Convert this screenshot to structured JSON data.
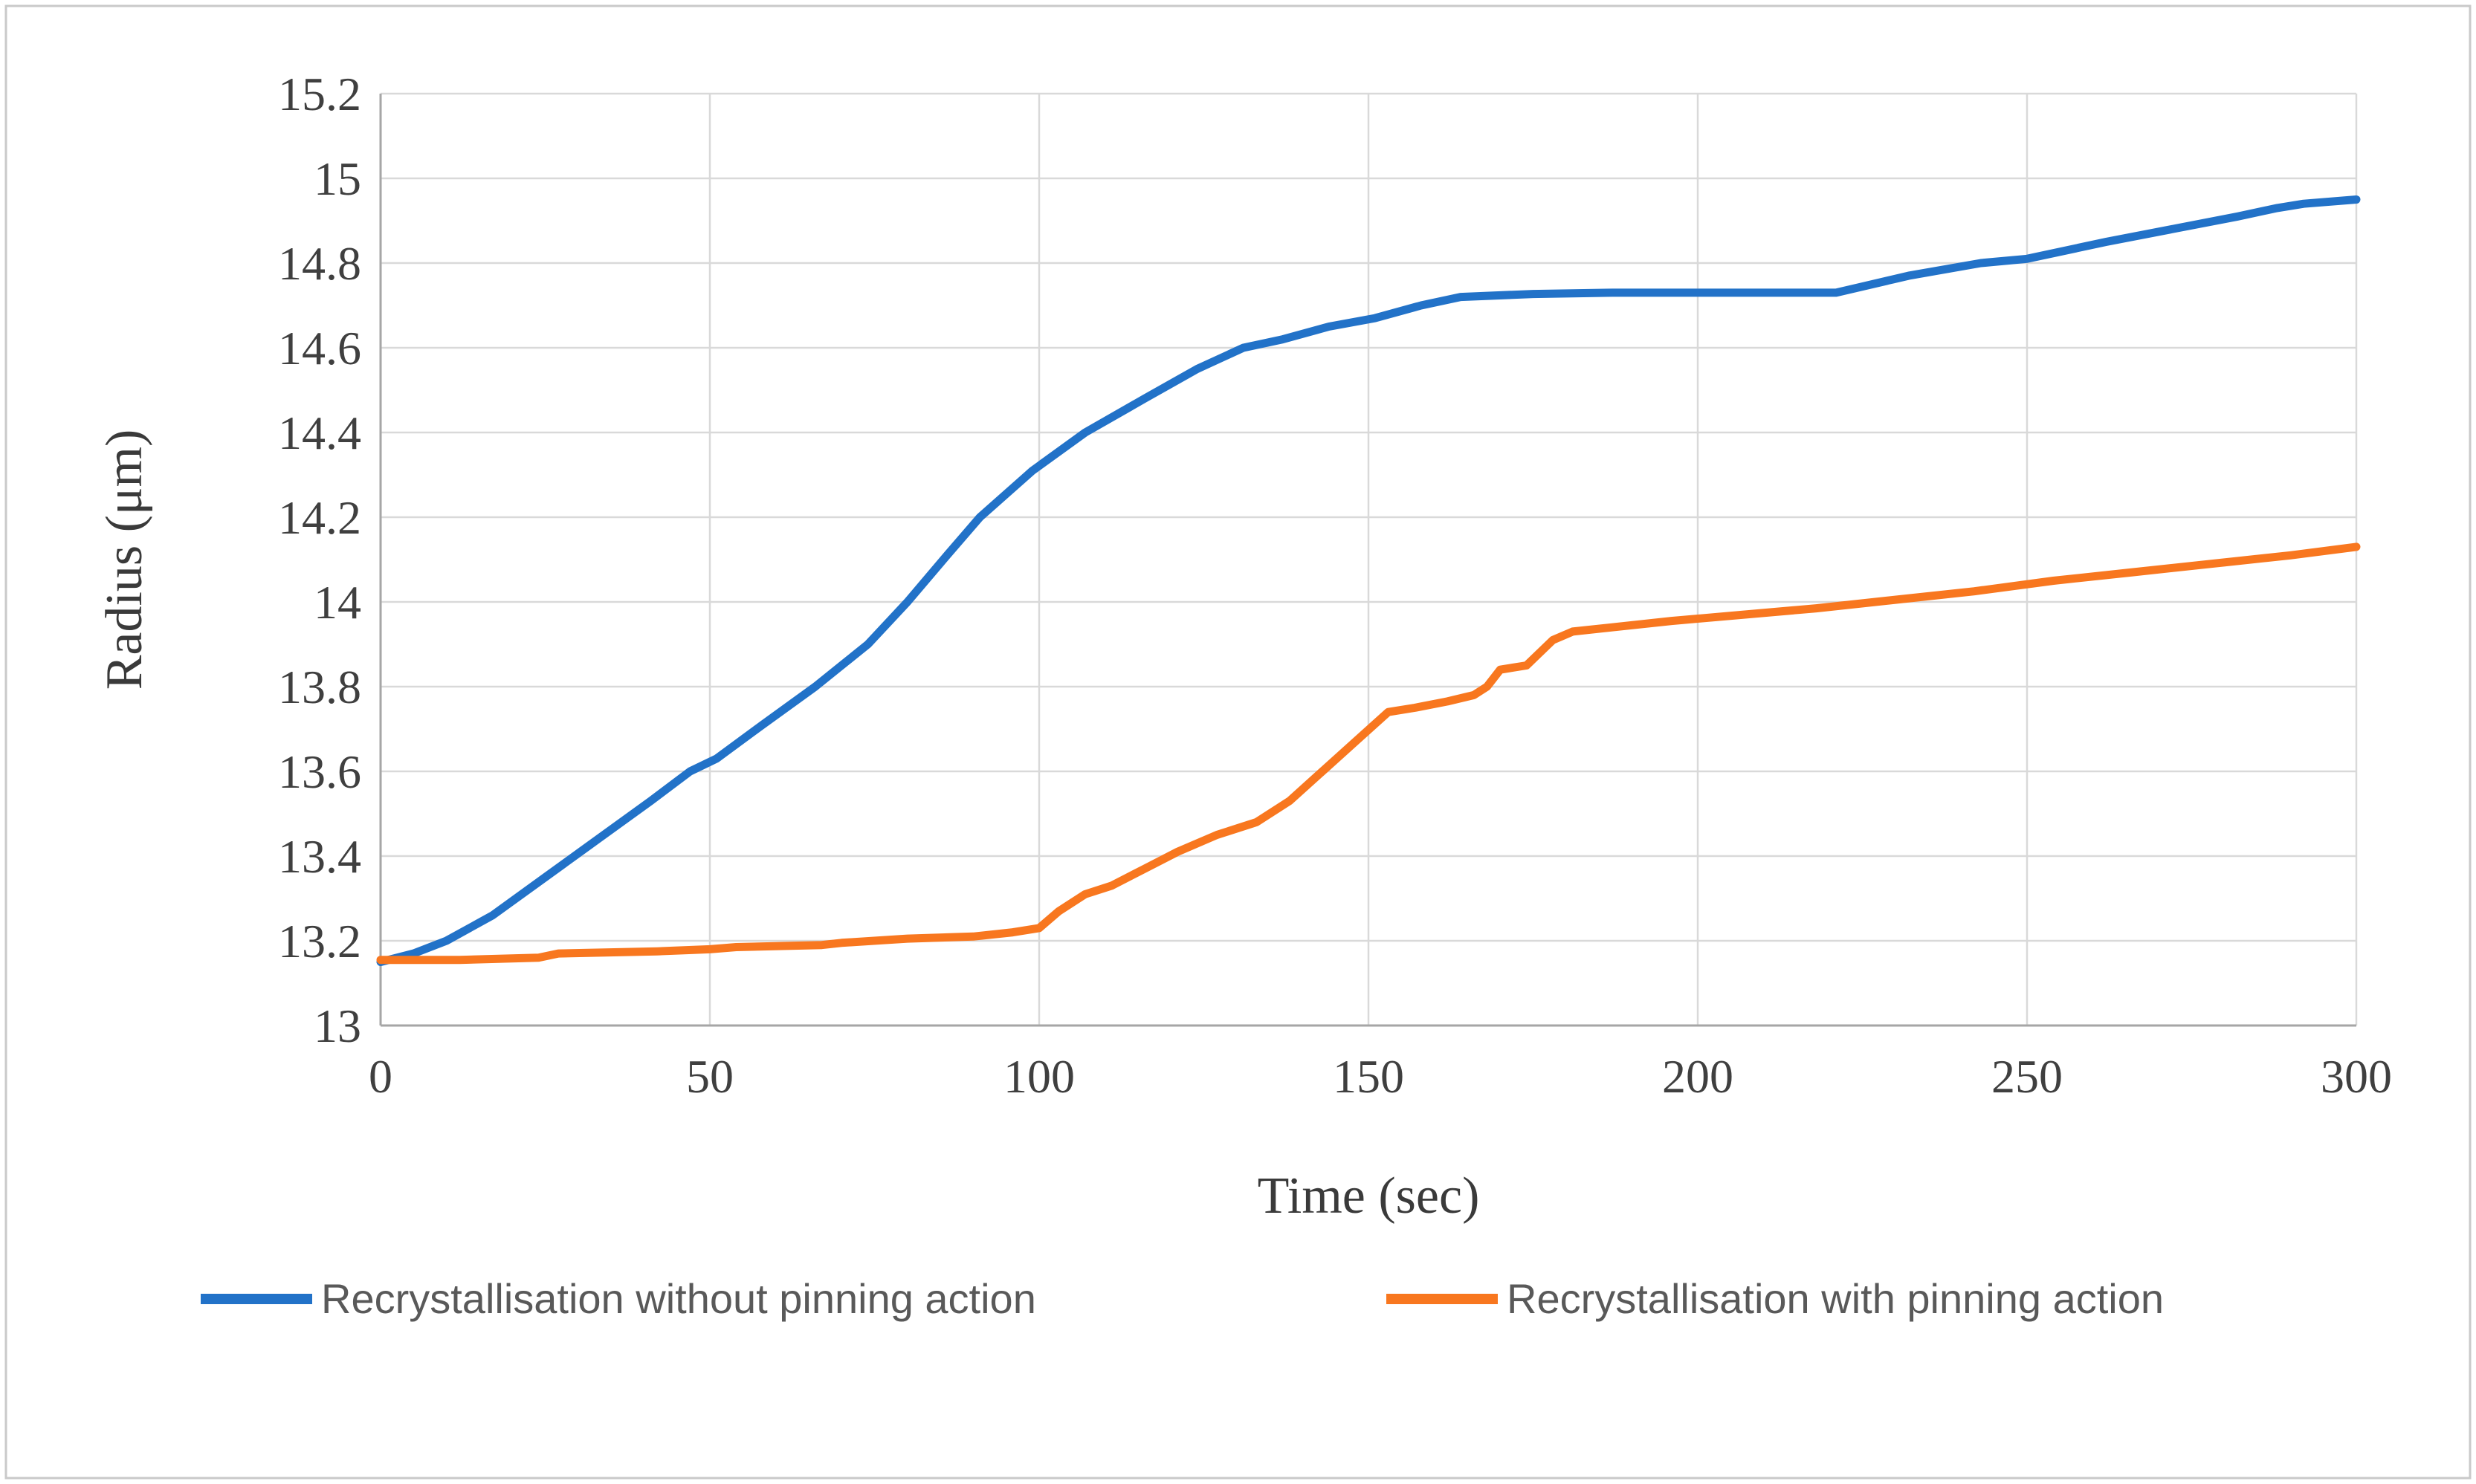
{
  "chart_data": {
    "type": "line",
    "title": "",
    "xlabel": "Time (sec)",
    "ylabel": "Radius (μm)",
    "xlim": [
      0,
      300
    ],
    "ylim": [
      13,
      15.2
    ],
    "x_ticks": [
      "0",
      "50",
      "100",
      "150",
      "200",
      "250",
      "300"
    ],
    "x_tick_values": [
      0,
      50,
      100,
      150,
      200,
      250,
      300
    ],
    "y_ticks": [
      "13",
      "13.2",
      "13.4",
      "13.6",
      "13.8",
      "14",
      "14.2",
      "14.4",
      "14.6",
      "14.8",
      "15",
      "15.2"
    ],
    "y_tick_values": [
      13,
      13.2,
      13.4,
      13.6,
      13.8,
      14,
      14.2,
      14.4,
      14.6,
      14.8,
      15,
      15.2
    ],
    "grid": true,
    "legend_position": "bottom",
    "series": [
      {
        "name": "Recrystallisation without pinning action",
        "color": "#2272C8",
        "points": [
          [
            0,
            13.15
          ],
          [
            5,
            13.17
          ],
          [
            10,
            13.2
          ],
          [
            17,
            13.26
          ],
          [
            25,
            13.35
          ],
          [
            33,
            13.44
          ],
          [
            41,
            13.53
          ],
          [
            47,
            13.6
          ],
          [
            51,
            13.63
          ],
          [
            58,
            13.71
          ],
          [
            66,
            13.8
          ],
          [
            74,
            13.9
          ],
          [
            80,
            14.0
          ],
          [
            86,
            14.11
          ],
          [
            91,
            14.2
          ],
          [
            99,
            14.31
          ],
          [
            107,
            14.4
          ],
          [
            116,
            14.48
          ],
          [
            124,
            14.55
          ],
          [
            131,
            14.6
          ],
          [
            137,
            14.62
          ],
          [
            144,
            14.65
          ],
          [
            151,
            14.67
          ],
          [
            158,
            14.7
          ],
          [
            164,
            14.72
          ],
          [
            175,
            14.727
          ],
          [
            187,
            14.73
          ],
          [
            221,
            14.73
          ],
          [
            232,
            14.77
          ],
          [
            243,
            14.8
          ],
          [
            250,
            14.81
          ],
          [
            262,
            14.85
          ],
          [
            272,
            14.88
          ],
          [
            282,
            14.91
          ],
          [
            288,
            14.93
          ],
          [
            292,
            14.94
          ],
          [
            300,
            14.95
          ]
        ]
      },
      {
        "name": "Recrystallisation with pinning action",
        "color": "#F8771F",
        "points": [
          [
            0,
            13.155
          ],
          [
            12,
            13.155
          ],
          [
            24,
            13.16
          ],
          [
            27,
            13.17
          ],
          [
            42,
            13.175
          ],
          [
            50,
            13.18
          ],
          [
            54,
            13.185
          ],
          [
            67,
            13.19
          ],
          [
            70,
            13.195
          ],
          [
            80,
            13.205
          ],
          [
            90,
            13.21
          ],
          [
            96,
            13.22
          ],
          [
            100,
            13.23
          ],
          [
            103,
            13.27
          ],
          [
            107,
            13.31
          ],
          [
            111,
            13.33
          ],
          [
            116,
            13.37
          ],
          [
            121,
            13.41
          ],
          [
            127,
            13.45
          ],
          [
            133,
            13.48
          ],
          [
            138,
            13.53
          ],
          [
            143,
            13.6
          ],
          [
            148,
            13.67
          ],
          [
            153,
            13.74
          ],
          [
            157,
            13.75
          ],
          [
            162,
            13.765
          ],
          [
            166,
            13.78
          ],
          [
            168,
            13.8
          ],
          [
            170,
            13.84
          ],
          [
            174,
            13.85
          ],
          [
            178,
            13.91
          ],
          [
            181,
            13.93
          ],
          [
            187,
            13.94
          ],
          [
            196,
            13.955
          ],
          [
            207,
            13.97
          ],
          [
            218,
            13.985
          ],
          [
            230,
            14.005
          ],
          [
            242,
            14.025
          ],
          [
            254,
            14.05
          ],
          [
            266,
            14.07
          ],
          [
            278,
            14.09
          ],
          [
            290,
            14.11
          ],
          [
            300,
            14.13
          ]
        ]
      }
    ],
    "colors": {
      "grid": "#D9D9D9",
      "axis": "#A6A6A6",
      "border": "#C9C9C9",
      "background": "#FFFFFF"
    }
  }
}
